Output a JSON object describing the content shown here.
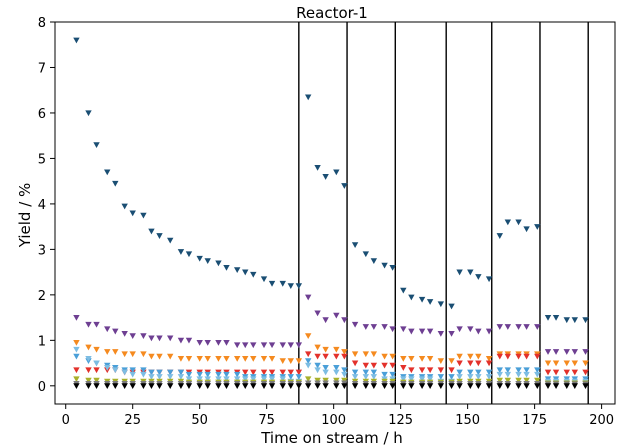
{
  "chart_data": {
    "type": "scatter",
    "title": "Reactor-1",
    "xlabel": "Time on stream / h",
    "ylabel": "Yield / %",
    "xlim": [
      -4,
      205
    ],
    "ylim": [
      -0.4,
      8
    ],
    "xticks": [
      0,
      25,
      50,
      75,
      100,
      125,
      150,
      175,
      200
    ],
    "yticks": [
      0,
      1,
      2,
      3,
      4,
      5,
      6,
      7,
      8
    ],
    "grid": false,
    "marker": "triangle-down",
    "vlines": [
      87,
      105,
      123,
      142,
      159,
      177,
      195
    ],
    "series": [
      {
        "color": "#1a4e73",
        "x": [
          4,
          8.5,
          11.5,
          15.5,
          18.5,
          22,
          25,
          29,
          32,
          35,
          39,
          43,
          46,
          50,
          53,
          57,
          60,
          64,
          67,
          70,
          74,
          77,
          81,
          84,
          87,
          90.5,
          94,
          97,
          101,
          104,
          108,
          112,
          115,
          119,
          122,
          126,
          129,
          133,
          136,
          140,
          144,
          147,
          151,
          154,
          158,
          162,
          165,
          169,
          172,
          176,
          180,
          183,
          187,
          190,
          194
        ],
        "y": [
          7.6,
          6.0,
          5.3,
          4.7,
          4.45,
          3.95,
          3.8,
          3.75,
          3.4,
          3.3,
          3.2,
          2.95,
          2.9,
          2.8,
          2.75,
          2.7,
          2.6,
          2.55,
          2.5,
          2.45,
          2.35,
          2.25,
          2.25,
          2.2,
          2.2,
          6.35,
          4.8,
          4.6,
          4.7,
          4.4,
          3.1,
          2.9,
          2.75,
          2.65,
          2.6,
          2.1,
          1.95,
          1.9,
          1.85,
          1.8,
          1.75,
          2.5,
          2.5,
          2.4,
          2.35,
          3.3,
          3.6,
          3.6,
          3.45,
          3.5,
          1.5,
          1.5,
          1.45,
          1.45,
          1.45
        ]
      },
      {
        "color": "#6e3f92",
        "x": [
          4,
          8.5,
          11.5,
          15.5,
          18.5,
          22,
          25,
          29,
          32,
          35,
          39,
          43,
          46,
          50,
          53,
          57,
          60,
          64,
          67,
          70,
          74,
          77,
          81,
          84,
          87,
          90.5,
          94,
          97,
          101,
          104,
          108,
          112,
          115,
          119,
          122,
          126,
          129,
          133,
          136,
          140,
          144,
          147,
          151,
          154,
          158,
          162,
          165,
          169,
          172,
          176,
          180,
          183,
          187,
          190,
          194
        ],
        "y": [
          1.5,
          1.35,
          1.35,
          1.25,
          1.2,
          1.15,
          1.1,
          1.1,
          1.05,
          1.05,
          1.05,
          1.0,
          1.0,
          0.95,
          0.95,
          0.95,
          0.95,
          0.9,
          0.9,
          0.9,
          0.9,
          0.9,
          0.9,
          0.9,
          0.9,
          1.95,
          1.6,
          1.45,
          1.55,
          1.45,
          1.35,
          1.3,
          1.3,
          1.3,
          1.25,
          1.25,
          1.2,
          1.2,
          1.2,
          1.15,
          1.15,
          1.25,
          1.25,
          1.2,
          1.2,
          1.3,
          1.3,
          1.3,
          1.3,
          1.3,
          0.75,
          0.75,
          0.75,
          0.75,
          0.75
        ]
      },
      {
        "color": "#f58a1f",
        "x": [
          4,
          8.5,
          11.5,
          15.5,
          18.5,
          22,
          25,
          29,
          32,
          35,
          39,
          43,
          46,
          50,
          53,
          57,
          60,
          64,
          67,
          70,
          74,
          77,
          81,
          84,
          87,
          90.5,
          94,
          97,
          101,
          104,
          108,
          112,
          115,
          119,
          122,
          126,
          129,
          133,
          136,
          140,
          144,
          147,
          151,
          154,
          158,
          162,
          165,
          169,
          172,
          176,
          180,
          183,
          187,
          190,
          194
        ],
        "y": [
          0.95,
          0.85,
          0.8,
          0.75,
          0.75,
          0.7,
          0.7,
          0.7,
          0.65,
          0.65,
          0.65,
          0.6,
          0.6,
          0.6,
          0.6,
          0.6,
          0.6,
          0.6,
          0.6,
          0.6,
          0.6,
          0.6,
          0.55,
          0.55,
          0.55,
          1.1,
          0.85,
          0.8,
          0.8,
          0.75,
          0.7,
          0.7,
          0.7,
          0.65,
          0.65,
          0.6,
          0.6,
          0.6,
          0.6,
          0.55,
          0.55,
          0.65,
          0.65,
          0.65,
          0.6,
          0.7,
          0.7,
          0.7,
          0.7,
          0.7,
          0.5,
          0.5,
          0.5,
          0.5,
          0.5
        ]
      },
      {
        "color": "#e3312b",
        "x": [
          4,
          8.5,
          11.5,
          15.5,
          18.5,
          22,
          25,
          29,
          32,
          35,
          39,
          43,
          46,
          50,
          53,
          57,
          60,
          64,
          67,
          70,
          74,
          77,
          81,
          84,
          87,
          90.5,
          94,
          97,
          101,
          104,
          108,
          112,
          115,
          119,
          122,
          126,
          129,
          133,
          136,
          140,
          144,
          147,
          151,
          154,
          158,
          162,
          165,
          169,
          172,
          176,
          180,
          183,
          187,
          190,
          194
        ],
        "y": [
          0.35,
          0.35,
          0.35,
          0.35,
          0.35,
          0.3,
          0.3,
          0.3,
          0.3,
          0.3,
          0.3,
          0.3,
          0.3,
          0.3,
          0.3,
          0.3,
          0.3,
          0.3,
          0.3,
          0.3,
          0.3,
          0.3,
          0.3,
          0.3,
          0.3,
          0.7,
          0.65,
          0.65,
          0.65,
          0.65,
          0.5,
          0.45,
          0.45,
          0.45,
          0.45,
          0.4,
          0.35,
          0.35,
          0.35,
          0.35,
          0.35,
          0.5,
          0.5,
          0.5,
          0.5,
          0.65,
          0.65,
          0.65,
          0.65,
          0.65,
          0.3,
          0.3,
          0.3,
          0.3,
          0.3
        ]
      },
      {
        "color": "#4a9fd8",
        "x": [
          4,
          8.5,
          11.5,
          15.5,
          18.5,
          22,
          25,
          29,
          32,
          35,
          39,
          43,
          46,
          50,
          53,
          57,
          60,
          64,
          67,
          70,
          74,
          77,
          81,
          84,
          87,
          90.5,
          94,
          97,
          101,
          104,
          108,
          112,
          115,
          119,
          122,
          126,
          129,
          133,
          136,
          140,
          144,
          147,
          151,
          154,
          158,
          162,
          165,
          169,
          172,
          176,
          180,
          183,
          187,
          190,
          194
        ],
        "y": [
          0.65,
          0.55,
          0.5,
          0.45,
          0.4,
          0.35,
          0.35,
          0.35,
          0.3,
          0.3,
          0.3,
          0.3,
          0.25,
          0.25,
          0.25,
          0.25,
          0.25,
          0.25,
          0.2,
          0.2,
          0.2,
          0.2,
          0.2,
          0.2,
          0.2,
          0.55,
          0.45,
          0.4,
          0.4,
          0.35,
          0.3,
          0.3,
          0.3,
          0.25,
          0.25,
          0.2,
          0.2,
          0.2,
          0.2,
          0.2,
          0.2,
          0.3,
          0.3,
          0.3,
          0.3,
          0.35,
          0.35,
          0.35,
          0.35,
          0.35,
          0.15,
          0.15,
          0.15,
          0.15,
          0.15
        ]
      },
      {
        "color": "#7dbde3",
        "x": [
          4,
          8.5,
          11.5,
          15.5,
          18.5,
          22,
          25,
          29,
          32,
          35,
          39,
          43,
          46,
          50,
          53,
          57,
          60,
          64,
          67,
          70,
          74,
          77,
          81,
          84,
          87,
          90.5,
          94,
          97,
          101,
          104,
          108,
          112,
          115,
          119,
          122,
          126,
          129,
          133,
          136,
          140,
          144,
          147,
          151,
          154,
          158,
          162,
          165,
          169,
          172,
          176,
          180,
          183,
          187,
          190,
          194
        ],
        "y": [
          0.8,
          0.6,
          0.5,
          0.4,
          0.35,
          0.3,
          0.25,
          0.25,
          0.2,
          0.2,
          0.2,
          0.2,
          0.15,
          0.15,
          0.15,
          0.15,
          0.15,
          0.15,
          0.15,
          0.15,
          0.15,
          0.15,
          0.15,
          0.1,
          0.1,
          0.45,
          0.35,
          0.3,
          0.3,
          0.25,
          0.2,
          0.2,
          0.2,
          0.15,
          0.15,
          0.15,
          0.15,
          0.15,
          0.15,
          0.1,
          0.1,
          0.2,
          0.2,
          0.2,
          0.2,
          0.25,
          0.25,
          0.25,
          0.25,
          0.25,
          0.1,
          0.1,
          0.1,
          0.1,
          0.1
        ]
      },
      {
        "color": "#a8b02a",
        "x": [
          4,
          8.5,
          11.5,
          15.5,
          18.5,
          22,
          25,
          29,
          32,
          35,
          39,
          43,
          46,
          50,
          53,
          57,
          60,
          64,
          67,
          70,
          74,
          77,
          81,
          84,
          87,
          90.5,
          94,
          97,
          101,
          104,
          108,
          112,
          115,
          119,
          122,
          126,
          129,
          133,
          136,
          140,
          144,
          147,
          151,
          154,
          158,
          162,
          165,
          169,
          172,
          176,
          180,
          183,
          187,
          190,
          194
        ],
        "y": [
          0.15,
          0.12,
          0.12,
          0.1,
          0.1,
          0.1,
          0.1,
          0.1,
          0.1,
          0.1,
          0.1,
          0.1,
          0.08,
          0.08,
          0.08,
          0.08,
          0.08,
          0.08,
          0.08,
          0.08,
          0.08,
          0.08,
          0.08,
          0.08,
          0.08,
          0.15,
          0.12,
          0.12,
          0.12,
          0.12,
          0.1,
          0.1,
          0.1,
          0.1,
          0.1,
          0.08,
          0.08,
          0.08,
          0.08,
          0.08,
          0.08,
          0.1,
          0.1,
          0.1,
          0.1,
          0.12,
          0.12,
          0.12,
          0.12,
          0.12,
          0.06,
          0.06,
          0.06,
          0.06,
          0.06
        ]
      },
      {
        "color": "#7a7a7a",
        "x": [
          4,
          8.5,
          11.5,
          15.5,
          18.5,
          22,
          25,
          29,
          32,
          35,
          39,
          43,
          46,
          50,
          53,
          57,
          60,
          64,
          67,
          70,
          74,
          77,
          81,
          84,
          87,
          90.5,
          94,
          97,
          101,
          104,
          108,
          112,
          115,
          119,
          122,
          126,
          129,
          133,
          136,
          140,
          144,
          147,
          151,
          154,
          158,
          162,
          165,
          169,
          172,
          176,
          180,
          183,
          187,
          190,
          194
        ],
        "y": [
          0.05,
          0.05,
          0.05,
          0.05,
          0.05,
          0.05,
          0.05,
          0.05,
          0.05,
          0.05,
          0.05,
          0.05,
          0.05,
          0.05,
          0.05,
          0.05,
          0.05,
          0.05,
          0.05,
          0.05,
          0.05,
          0.05,
          0.05,
          0.05,
          0.05,
          0.06,
          0.06,
          0.06,
          0.06,
          0.06,
          0.05,
          0.05,
          0.05,
          0.05,
          0.05,
          0.05,
          0.05,
          0.05,
          0.05,
          0.05,
          0.05,
          0.05,
          0.05,
          0.05,
          0.05,
          0.05,
          0.05,
          0.05,
          0.05,
          0.05,
          0.04,
          0.04,
          0.04,
          0.04,
          0.04
        ]
      },
      {
        "color": "#000000",
        "x": [
          4,
          8.5,
          11.5,
          15.5,
          18.5,
          22,
          25,
          29,
          32,
          35,
          39,
          43,
          46,
          50,
          53,
          57,
          60,
          64,
          67,
          70,
          74,
          77,
          81,
          84,
          87,
          90.5,
          94,
          97,
          101,
          104,
          108,
          112,
          115,
          119,
          122,
          126,
          129,
          133,
          136,
          140,
          144,
          147,
          151,
          154,
          158,
          162,
          165,
          169,
          172,
          176,
          180,
          183,
          187,
          190,
          194
        ],
        "y": [
          0.0,
          0.0,
          0.0,
          0.0,
          0.0,
          0.0,
          0.0,
          0.0,
          0.0,
          0.0,
          0.0,
          0.0,
          0.0,
          0.0,
          0.0,
          0.0,
          0.0,
          0.0,
          0.0,
          0.0,
          0.0,
          0.0,
          0.0,
          0.0,
          0.0,
          0.0,
          0.0,
          0.0,
          0.0,
          0.0,
          0.0,
          0.0,
          0.0,
          0.0,
          0.0,
          0.0,
          0.0,
          0.0,
          0.0,
          0.0,
          0.0,
          0.0,
          0.0,
          0.0,
          0.0,
          0.0,
          0.0,
          0.0,
          0.0,
          0.0,
          0.0,
          0.0,
          0.0,
          0.0,
          0.0
        ]
      }
    ]
  }
}
